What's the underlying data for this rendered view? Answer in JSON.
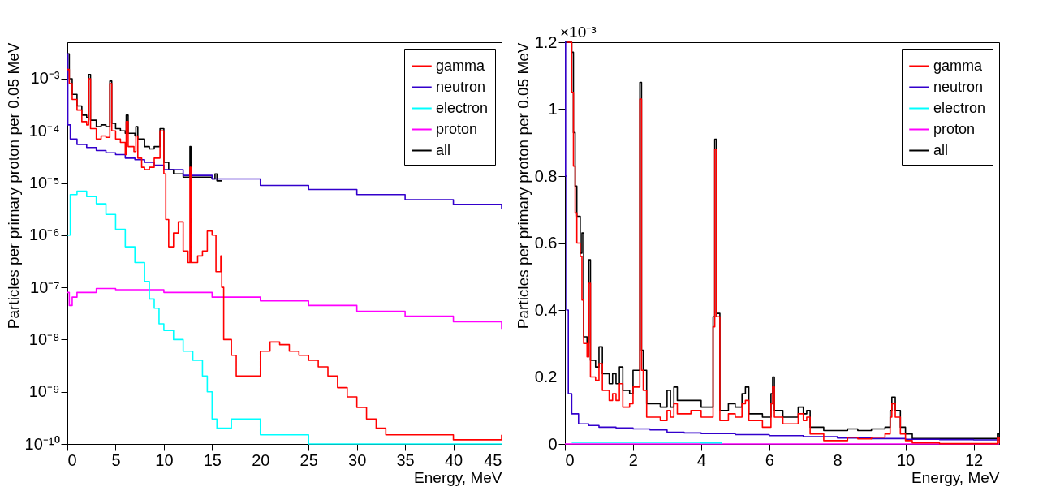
{
  "chart_data": [
    {
      "type": "step",
      "xlabel": "Energy, MeV",
      "ylabel": "Particles per primary proton per 0.05 MeV",
      "log": "y",
      "grid": false,
      "legend": "top right",
      "xlim": [
        0,
        45
      ],
      "xticks": [
        0,
        5,
        10,
        15,
        20,
        25,
        30,
        35,
        40,
        45
      ],
      "ylim": [
        1e-10,
        0.005
      ],
      "yticks": [
        {
          "value": 1e-10,
          "label": "10⁻¹⁰"
        },
        {
          "value": 1e-09,
          "label": "10⁻⁹"
        },
        {
          "value": 1e-08,
          "label": "10⁻⁸"
        },
        {
          "value": 1e-07,
          "label": "10⁻⁷"
        },
        {
          "value": 1e-06,
          "label": "10⁻⁶"
        },
        {
          "value": 1e-05,
          "label": "10⁻⁵"
        },
        {
          "value": 0.0001,
          "label": "10⁻⁴"
        },
        {
          "value": 0.001,
          "label": "10⁻³"
        }
      ],
      "series": [
        {
          "name": "gamma",
          "color": "#ff0000",
          "x": [
            0,
            0.2,
            0.5,
            1,
            1.5,
            2,
            2.2,
            2.4,
            3,
            3.5,
            4,
            4.4,
            4.6,
            5,
            5.5,
            6,
            6.1,
            6.3,
            6.9,
            7.1,
            7.3,
            7.7,
            8,
            8.5,
            9,
            9.6,
            10,
            10.2,
            10.5,
            11,
            11.5,
            12,
            12.5,
            12.7,
            12.8,
            13.5,
            14,
            14.5,
            15,
            15.4,
            15.9,
            16,
            16.2,
            17,
            17.5,
            18,
            19,
            19.5,
            20,
            21,
            22,
            23,
            24,
            25,
            26,
            27,
            28,
            29,
            30,
            31,
            32,
            33,
            35,
            40,
            45
          ],
          "values": [
            0.0015,
            0.0008,
            0.0004,
            0.00025,
            0.00015,
            0.00013,
            0.001,
            0.00011,
            7e-05,
            8e-05,
            7.5e-05,
            0.0008,
            0.0001,
            7e-05,
            6e-05,
            3.5e-05,
            0.00015,
            5e-05,
            4e-05,
            8e-05,
            3e-05,
            2e-05,
            1.8e-05,
            2e-05,
            3e-05,
            0.0001,
            1.5e-05,
            2e-06,
            6e-07,
            1.1e-06,
            1.8e-06,
            5e-07,
            3e-07,
            2e-05,
            3e-07,
            4e-07,
            5e-07,
            1.2e-06,
            1e-06,
            2e-07,
            4e-07,
            1e-07,
            1e-08,
            5e-09,
            2e-09,
            2e-09,
            2e-09,
            2e-09,
            6e-09,
            9e-09,
            8e-09,
            6e-09,
            5e-09,
            4e-09,
            3e-09,
            2e-09,
            1.2e-09,
            8e-10,
            5e-10,
            3e-10,
            2e-10,
            1.5e-10,
            1.5e-10,
            1.2e-10,
            1.5e-10
          ]
        },
        {
          "name": "neutron",
          "color": "#3300cc",
          "x": [
            0,
            0.05,
            0.3,
            1,
            2,
            3,
            4,
            5,
            6,
            7,
            8,
            9,
            10,
            12,
            15,
            20,
            25,
            30,
            35,
            40,
            45
          ],
          "values": [
            0.003,
            0.00013,
            7e-05,
            5.5e-05,
            4.8e-05,
            4.2e-05,
            3.8e-05,
            3.5e-05,
            3e-05,
            2.8e-05,
            2.5e-05,
            2.2e-05,
            1.8e-05,
            1.4e-05,
            1.2e-05,
            9e-06,
            7.5e-06,
            6e-06,
            4.8e-06,
            3.9e-06,
            3.2e-06
          ]
        },
        {
          "name": "electron",
          "color": "#00ffff",
          "x": [
            0,
            0.3,
            1,
            2,
            3,
            4,
            5,
            6,
            7,
            8,
            8.5,
            9,
            9.5,
            10,
            11,
            12,
            13,
            14,
            14.5,
            15,
            15.5,
            17,
            20,
            25,
            45
          ],
          "values": [
            1e-06,
            6e-06,
            7e-06,
            5.5e-06,
            4e-06,
            2.5e-06,
            1.3e-06,
            6e-07,
            3e-07,
            1.3e-07,
            6e-08,
            4e-08,
            2e-08,
            1.5e-08,
            1e-08,
            6e-09,
            4e-09,
            2e-09,
            1e-09,
            3e-10,
            2e-10,
            3e-10,
            1.5e-10,
            1e-10,
            1e-10
          ]
        },
        {
          "name": "proton",
          "color": "#ff00ff",
          "x": [
            0,
            0.2,
            0.5,
            1,
            3,
            5,
            10,
            15,
            20,
            25,
            30,
            35,
            40,
            45
          ],
          "values": [
            8e-08,
            4.5e-08,
            6.5e-08,
            8e-08,
            9.5e-08,
            9e-08,
            8e-08,
            6.5e-08,
            5.5e-08,
            4.5e-08,
            3.5e-08,
            2.8e-08,
            2.2e-08,
            1.6e-08
          ]
        },
        {
          "name": "all",
          "color": "#000000",
          "x": [
            0,
            0.2,
            0.5,
            1,
            1.5,
            2,
            2.2,
            2.4,
            3,
            3.5,
            4,
            4.4,
            4.6,
            5,
            5.5,
            6,
            6.1,
            6.3,
            7,
            7.1,
            7.3,
            8,
            8.5,
            9,
            9.6,
            10,
            10.5,
            11,
            12,
            12.7,
            12.8,
            15,
            15.3,
            15.5,
            16
          ],
          "values": [
            0.003,
            0.001,
            0.0005,
            0.0003,
            0.0002,
            0.00018,
            0.0012,
            0.00016,
            0.00012,
            0.00013,
            0.00012,
            0.0009,
            0.00014,
            0.00011,
            0.0001,
            9e-05,
            0.0002,
            9e-05,
            8e-05,
            0.00012,
            7e-05,
            5e-05,
            4.5e-05,
            5e-05,
            0.00011,
            2.5e-05,
            1.8e-05,
            1.5e-05,
            1.3e-05,
            5e-05,
            1.3e-05,
            1.2e-05,
            1.5e-05,
            1.1e-05,
            1.1e-05
          ]
        }
      ]
    },
    {
      "type": "step",
      "xlabel": "Energy, MeV",
      "ylabel": "Particles per primary proton per 0.05 MeV",
      "annotations": [
        "×10⁻³"
      ],
      "grid": false,
      "legend": "top right",
      "xlim": [
        0,
        12.75
      ],
      "xticks": [
        0,
        2,
        4,
        6,
        8,
        10,
        12
      ],
      "ylim": [
        0,
        1.2
      ],
      "yticks": [
        0,
        0.2,
        0.4,
        0.6,
        0.8,
        1,
        1.2
      ],
      "series": [
        {
          "name": "gamma",
          "color": "#ff0000",
          "x": [
            0.05,
            0.2,
            0.25,
            0.3,
            0.35,
            0.45,
            0.5,
            0.55,
            0.65,
            0.7,
            0.75,
            0.9,
            1,
            1.1,
            1.3,
            1.4,
            1.5,
            1.6,
            1.7,
            1.9,
            2,
            2.1,
            2.2,
            2.25,
            2.3,
            2.4,
            2.8,
            3,
            3.1,
            3.2,
            3.3,
            3.7,
            4,
            4.2,
            4.35,
            4.4,
            4.45,
            4.55,
            4.8,
            5,
            5.2,
            5.3,
            5.4,
            5.8,
            6.05,
            6.1,
            6.15,
            6.4,
            6.7,
            6.85,
            7,
            7.1,
            7.2,
            7.6,
            8,
            8.3,
            8.6,
            9,
            9.4,
            9.55,
            9.6,
            9.7,
            9.85,
            10,
            10.2,
            11,
            12.6,
            12.7,
            12.75
          ],
          "values": [
            1.2,
            1.05,
            0.83,
            0.69,
            0.6,
            0.56,
            0.43,
            0.3,
            0.26,
            0.48,
            0.2,
            0.19,
            0.24,
            0.16,
            0.13,
            0.15,
            0.13,
            0.18,
            0.11,
            0.12,
            0.17,
            0.17,
            1.03,
            0.22,
            0.16,
            0.08,
            0.07,
            0.1,
            0.08,
            0.12,
            0.09,
            0.1,
            0.08,
            0.08,
            0.35,
            0.88,
            0.38,
            0.07,
            0.09,
            0.08,
            0.12,
            0.13,
            0.07,
            0.05,
            0.12,
            0.17,
            0.08,
            0.06,
            0.06,
            0.09,
            0.07,
            0.08,
            0.03,
            0.01,
            0.01,
            0.02,
            0.015,
            0.02,
            0.03,
            0.08,
            0.12,
            0.08,
            0.03,
            0.01,
            0.003,
            0.001,
            0.001,
            0.02,
            0.001
          ]
        },
        {
          "name": "neutron",
          "color": "#3300cc",
          "x": [
            0,
            0.02,
            0.05,
            0.1,
            0.2,
            0.4,
            0.7,
            1,
            1.5,
            2,
            2.5,
            3,
            3.5,
            4,
            5,
            6,
            7,
            8,
            9,
            10,
            11,
            12,
            12.75
          ],
          "values": [
            1.2,
            0.8,
            0.4,
            0.15,
            0.09,
            0.06,
            0.055,
            0.05,
            0.048,
            0.045,
            0.042,
            0.035,
            0.033,
            0.031,
            0.028,
            0.025,
            0.022,
            0.018,
            0.016,
            0.014,
            0.013,
            0.012,
            0.012
          ]
        },
        {
          "name": "electron",
          "color": "#00ffff",
          "x": [
            0.2,
            1,
            2,
            3,
            4,
            4.6
          ],
          "values": [
            0.005,
            0.005,
            0.005,
            0.005,
            0.003,
            0
          ]
        },
        {
          "name": "proton",
          "color": "#ff00ff",
          "x": [
            0,
            12.75
          ],
          "values": [
            0,
            0
          ]
        },
        {
          "name": "all",
          "color": "#000000",
          "x": [
            0,
            0.05,
            0.2,
            0.25,
            0.3,
            0.35,
            0.45,
            0.5,
            0.55,
            0.65,
            0.7,
            0.75,
            0.9,
            1,
            1.1,
            1.3,
            1.4,
            1.5,
            1.6,
            1.7,
            1.9,
            2,
            2.1,
            2.2,
            2.25,
            2.3,
            2.4,
            2.8,
            3,
            3.1,
            3.2,
            3.3,
            3.7,
            4,
            4.2,
            4.35,
            4.4,
            4.45,
            4.55,
            4.8,
            5,
            5.2,
            5.3,
            5.4,
            5.8,
            6.05,
            6.1,
            6.15,
            6.4,
            6.7,
            6.85,
            7,
            7.1,
            7.2,
            7.6,
            8,
            8.3,
            8.6,
            9,
            9.4,
            9.55,
            9.6,
            9.7,
            9.85,
            10,
            10.2,
            11,
            12.6,
            12.7,
            12.75
          ],
          "values": [
            1.2,
            1.2,
            1.17,
            0.93,
            0.77,
            0.68,
            0.57,
            0.63,
            0.32,
            0.3,
            0.55,
            0.25,
            0.23,
            0.29,
            0.21,
            0.18,
            0.21,
            0.18,
            0.23,
            0.16,
            0.15,
            0.22,
            0.22,
            1.08,
            0.28,
            0.22,
            0.12,
            0.11,
            0.16,
            0.11,
            0.17,
            0.13,
            0.13,
            0.11,
            0.11,
            0.38,
            0.91,
            0.39,
            0.1,
            0.12,
            0.11,
            0.15,
            0.17,
            0.09,
            0.08,
            0.15,
            0.2,
            0.1,
            0.08,
            0.08,
            0.11,
            0.09,
            0.1,
            0.05,
            0.04,
            0.04,
            0.045,
            0.04,
            0.045,
            0.05,
            0.1,
            0.14,
            0.1,
            0.05,
            0.03,
            0.016,
            0.016,
            0.016,
            0.03,
            0.016
          ]
        }
      ]
    }
  ]
}
